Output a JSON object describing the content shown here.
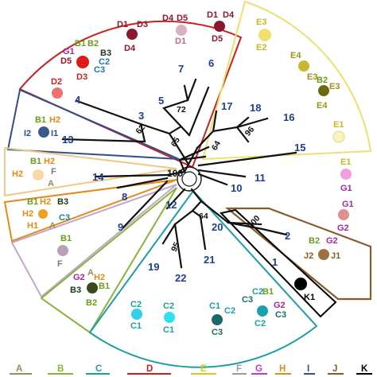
{
  "tree": {
    "root_bootstrap": "100",
    "bootstrap": [
      "72",
      "62",
      "65",
      "96",
      "64",
      "100",
      "64",
      "95"
    ],
    "clusters": [
      "1",
      "2",
      "3",
      "4",
      "5",
      "6",
      "7",
      "8",
      "9",
      "10",
      "11",
      "12",
      "13",
      "14",
      "15",
      "16",
      "17",
      "18",
      "19",
      "20",
      "21",
      "22"
    ]
  },
  "groups": [
    {
      "id": "A",
      "color": "#9b8a5a"
    },
    {
      "id": "B",
      "color": "#8ab33c"
    },
    {
      "id": "C",
      "color": "#1e9ea1"
    },
    {
      "id": "D",
      "color": "#cc1f1f"
    },
    {
      "id": "E",
      "color": "#d8c82a"
    },
    {
      "id": "F",
      "color": "#9a9a9a"
    },
    {
      "id": "G",
      "color": "#c03cc0"
    },
    {
      "id": "H",
      "color": "#e28a1a"
    },
    {
      "id": "I",
      "color": "#2e4f8a"
    },
    {
      "id": "J",
      "color": "#8a5a2a"
    },
    {
      "id": "K",
      "color": "#000000"
    }
  ],
  "legend_letters": [
    "A",
    "B",
    "C",
    "D",
    "E",
    "F",
    "G",
    "H",
    "I",
    "J",
    "K"
  ],
  "labels": {
    "d_top": [
      "D1",
      "D3",
      "D4",
      "D4",
      "D5",
      "D1",
      "D4",
      "D1",
      "D5"
    ],
    "mix1": [
      "B1",
      "B2",
      "G1",
      "D5",
      "B3",
      "C2",
      "D3",
      "C3"
    ],
    "d2": "D2",
    "e_side": [
      "E3",
      "E2",
      "E4",
      "E3",
      "B2",
      "E3",
      "E4",
      "E1",
      "E1",
      "G1",
      "G1",
      "G2"
    ],
    "i_grp": [
      "B1",
      "H2",
      "I2",
      "I1"
    ],
    "h_grp": [
      "B1",
      "H2",
      "H2",
      "F",
      "A"
    ],
    "b_grp": [
      "B1",
      "H2",
      "B3",
      "H2",
      "C3",
      "H1",
      "A"
    ],
    "f_grp": [
      "B1",
      "F"
    ],
    "g_grp": [
      "G2",
      "A",
      "H2",
      "B1",
      "B3",
      "B2"
    ],
    "j_grp": [
      "B2",
      "G2",
      "J2",
      "J1"
    ],
    "k": "K1",
    "c_bottom": [
      "C2",
      "C1",
      "C2",
      "C1",
      "C1",
      "C2",
      "C3",
      "C3",
      "B1",
      "C2",
      "G2",
      "C3",
      "C2"
    ]
  }
}
